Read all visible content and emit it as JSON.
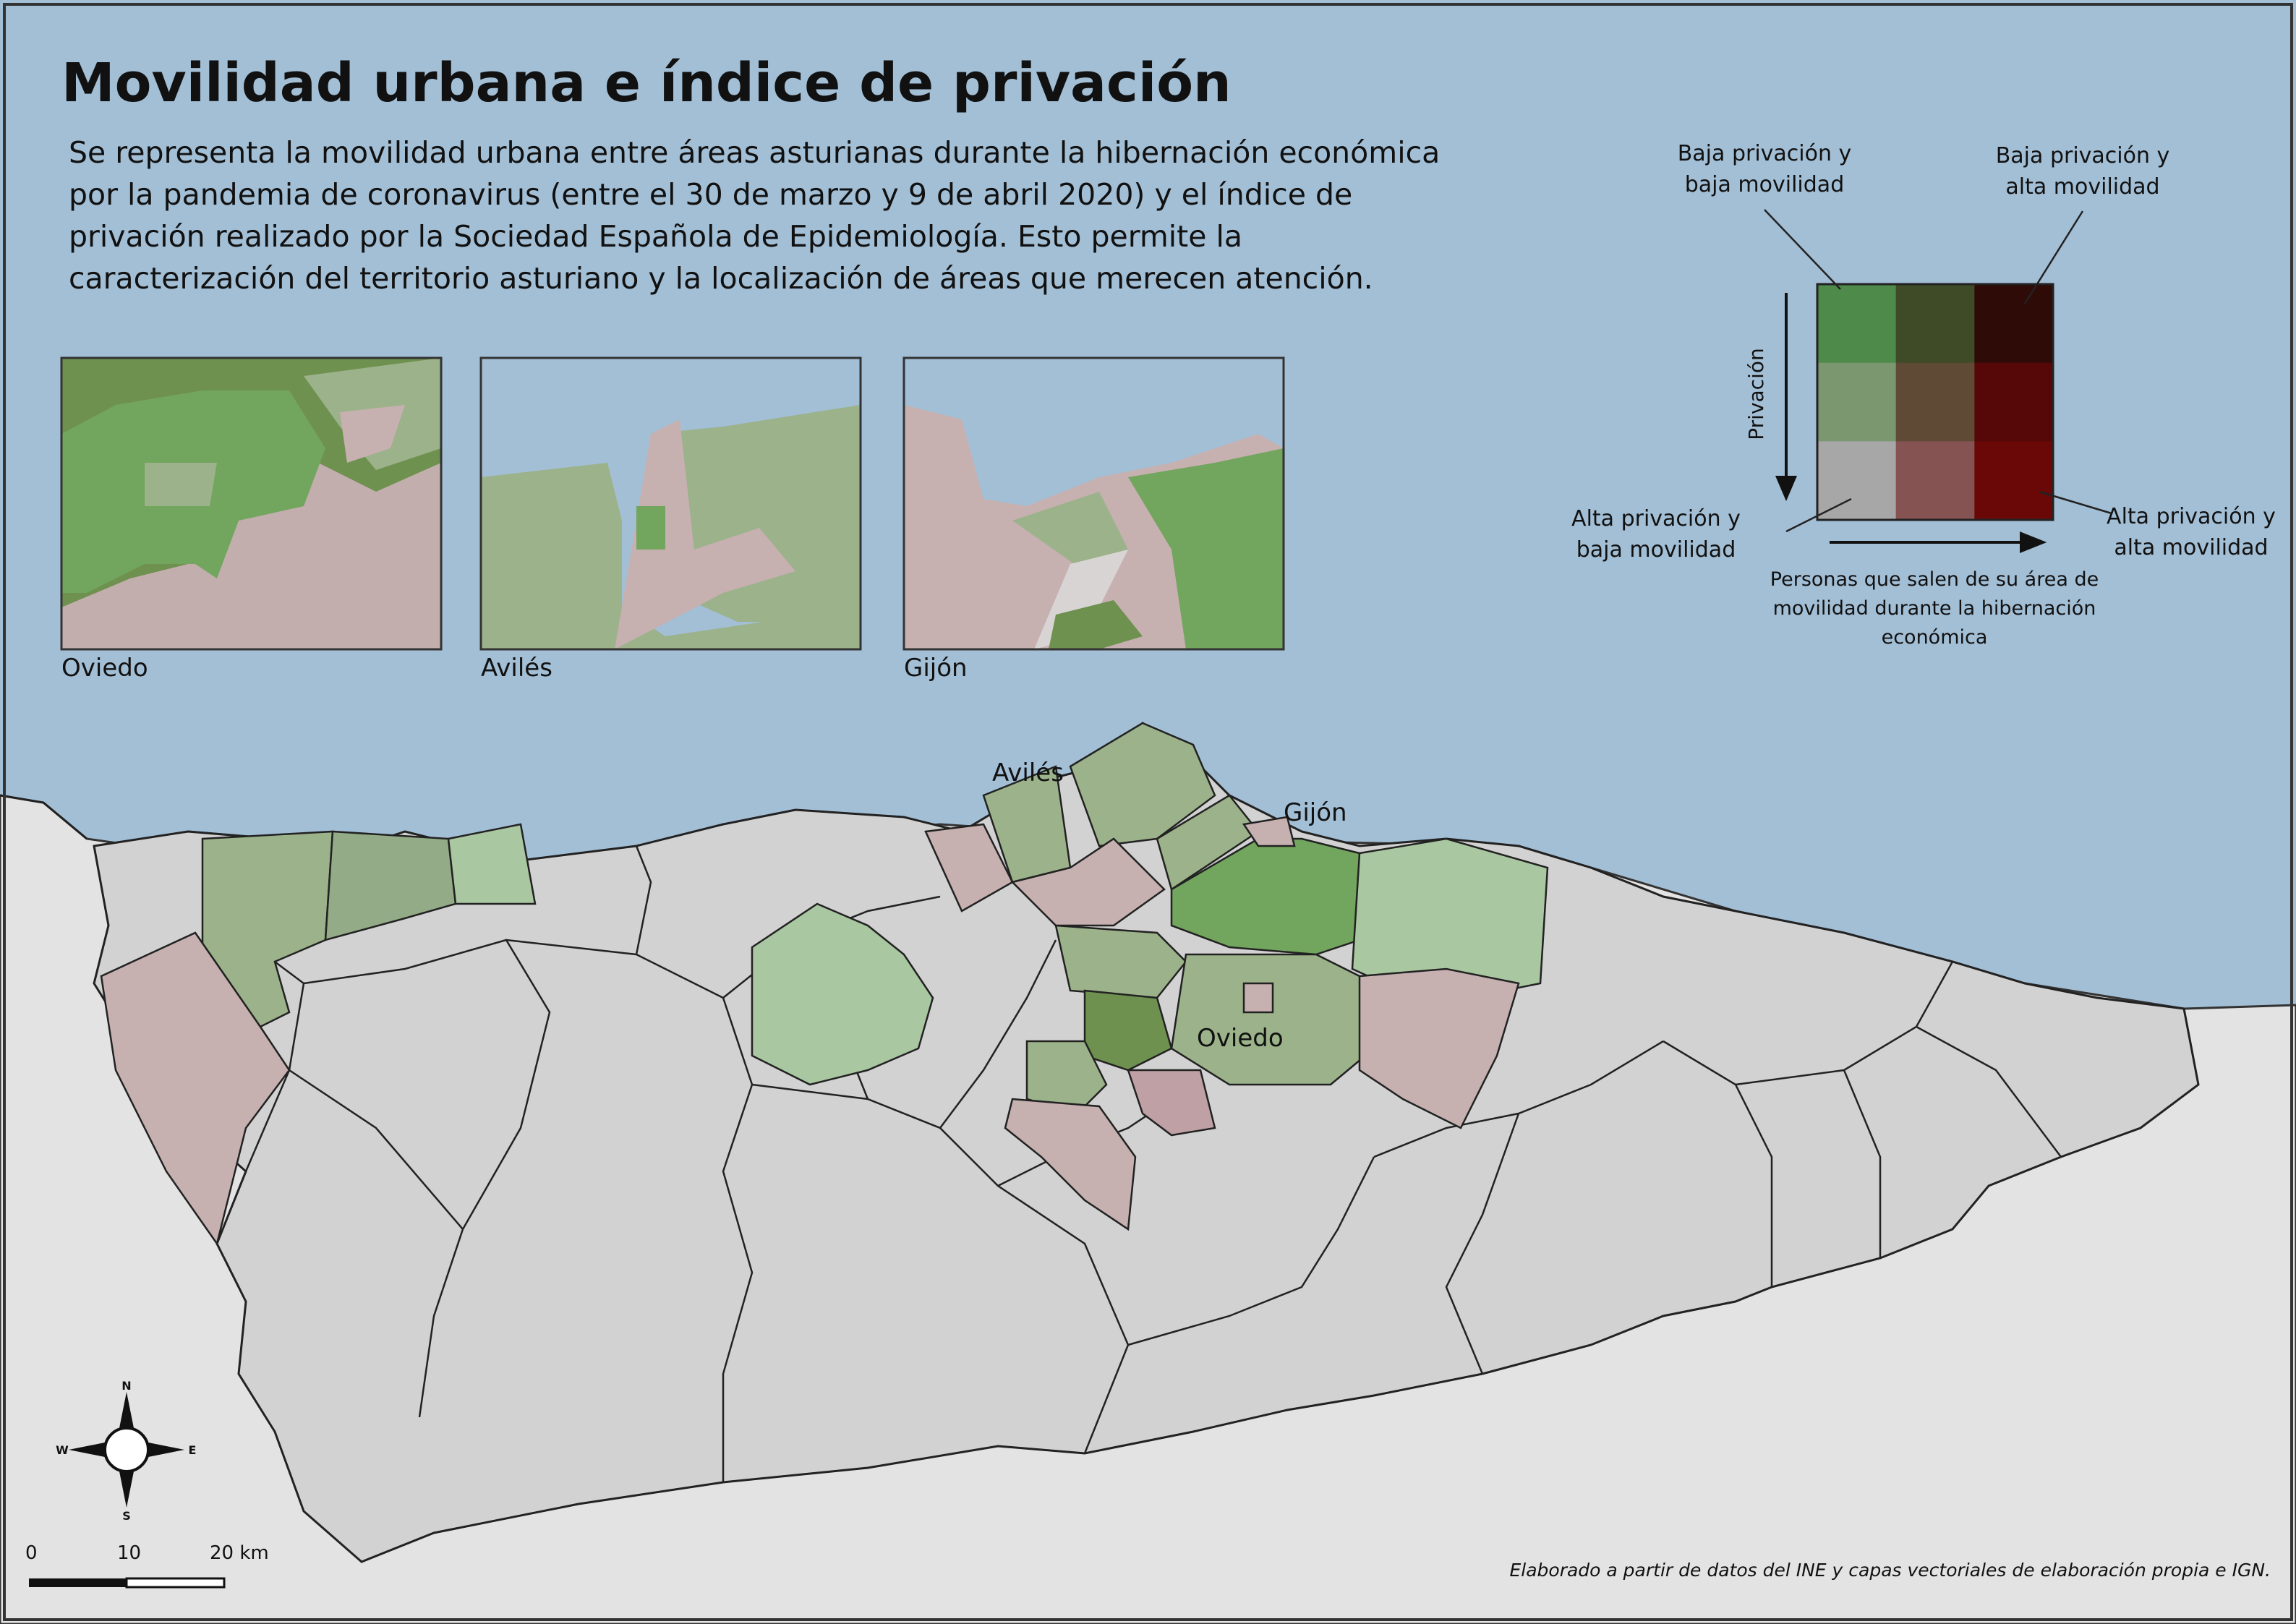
{
  "title": "Movilidad urbana e índice de privación",
  "description": [
    "Se representa la movilidad urbana entre áreas asturianas durante la hibernación económica",
    "por la pandemia de coronavirus (entre el 30 de marzo y 9 de abril 2020) y el índice de",
    "privación realizado por la Sociedad Española de Epidemiología. Esto permite la",
    "caracterización del territorio asturiano y la localización de áreas que merecen atención."
  ],
  "insets": [
    {
      "label": "Oviedo"
    },
    {
      "label": "Avilés"
    },
    {
      "label": "Gijón"
    }
  ],
  "cities": {
    "aviles": "Avilés",
    "gijon": "Gijón",
    "oviedo": "Oviedo"
  },
  "legend": {
    "top_left": [
      "Baja privación y",
      "baja movilidad"
    ],
    "top_right": [
      "Baja privación y",
      "alta movilidad"
    ],
    "bottom_left": [
      "Alta privación y",
      "baja movilidad"
    ],
    "bottom_right": [
      "Alta privación y",
      "alta movilidad"
    ],
    "y_axis": "Privación",
    "x_axis": [
      "Personas que salen de su área de",
      "movilidad durante la hibernación",
      "económica"
    ],
    "grid_colors": [
      [
        "#4e8a49",
        "#3f4a26",
        "#2f0b08"
      ],
      [
        "#7b9770",
        "#5f4a36",
        "#560707"
      ],
      [
        "#a7a7a7",
        "#845352",
        "#6a0808"
      ]
    ]
  },
  "compass": {
    "n": "N",
    "s": "S",
    "e": "E",
    "w": "W"
  },
  "scale": {
    "ticks": [
      "0",
      "10",
      "20 km"
    ]
  },
  "credit": "Elaborado a partir de datos del INE y capas vectoriales de elaboración propia e IGN.",
  "colors": {
    "sea": "#a3bfd6",
    "land_outside": "#e3e3e3",
    "region_base": "#d2d2d2",
    "green_dark": "#6f9150",
    "green_mid": "#9bb28a",
    "green_light": "#a9c7a0",
    "green_bright": "#72a55d",
    "pink": "#c6b0b0",
    "pink_mid": "#bfa0a4"
  }
}
